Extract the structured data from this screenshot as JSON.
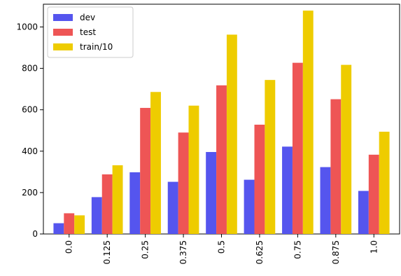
{
  "chart_data": {
    "type": "bar",
    "categories": [
      "0.0",
      "0.125",
      "0.25",
      "0.375",
      "0.5",
      "0.625",
      "0.75",
      "0.875",
      "1.0"
    ],
    "series": [
      {
        "name": "dev",
        "color": "#5555ee",
        "values": [
          52,
          178,
          298,
          252,
          396,
          262,
          422,
          323,
          208
        ]
      },
      {
        "name": "test",
        "color": "#ee5555",
        "values": [
          100,
          288,
          609,
          490,
          718,
          528,
          827,
          651,
          383
        ]
      },
      {
        "name": "train/10",
        "color": "#eecc00",
        "values": [
          90,
          332,
          686,
          620,
          963,
          744,
          1079,
          817,
          494
        ]
      }
    ],
    "yticks": [
      "0",
      "200",
      "400",
      "600",
      "800",
      "1000"
    ],
    "ylim": [
      0,
      1110
    ],
    "xlabel": "",
    "ylabel": "",
    "title": "",
    "legend_position": "top-left",
    "grid": false
  }
}
